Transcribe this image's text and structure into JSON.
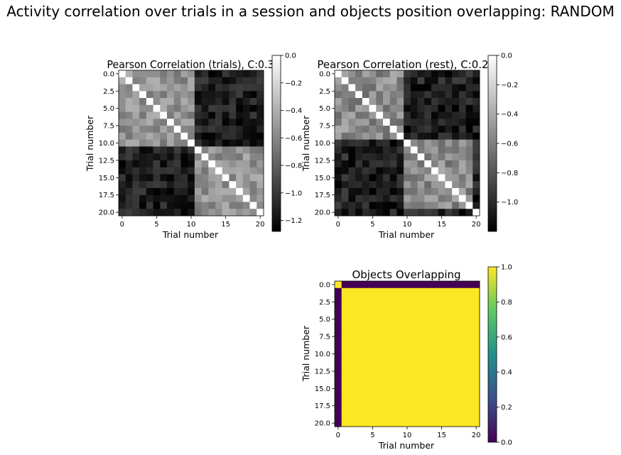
{
  "figure": {
    "suptitle": "Activity correlation over trials in a session and objects position overlapping: RANDOM"
  },
  "chart_data": [
    {
      "type": "heatmap",
      "title": "Pearson Correlation (trials), C:0.3",
      "xlabel": "Trial number",
      "ylabel": "Trial number",
      "n": 21,
      "x_ticks": [
        "0",
        "5",
        "10",
        "15",
        "20"
      ],
      "y_ticks": [
        "0.0",
        "2.5",
        "5.0",
        "7.5",
        "10.0",
        "12.5",
        "15.0",
        "17.5",
        "20.0"
      ],
      "colormap": "gray",
      "value_range": [
        -1.28,
        0
      ],
      "colorbar_ticks": [
        "0.0",
        "−0.2",
        "−0.4",
        "−0.6",
        "−0.8",
        "−1.0",
        "−1.2"
      ],
      "blocks": [
        [
          0,
          10
        ],
        [
          11,
          20
        ]
      ],
      "within_block_mean": -0.55,
      "between_block_mean": -1.12,
      "diagonal": 0
    },
    {
      "type": "heatmap",
      "title": "Pearson Correlation (rest), C:0.2",
      "xlabel": "Trial number",
      "ylabel": "Trial number",
      "n": 21,
      "x_ticks": [
        "0",
        "5",
        "10",
        "15",
        "20"
      ],
      "y_ticks": [
        "0.0",
        "2.5",
        "5.0",
        "7.5",
        "10.0",
        "12.5",
        "15.0",
        "17.5",
        "20.0"
      ],
      "colormap": "gray",
      "value_range": [
        -1.2,
        0
      ],
      "colorbar_ticks": [
        "0.0",
        "−0.2",
        "−0.4",
        "−0.6",
        "−0.8",
        "−1.0"
      ],
      "blocks": [
        [
          0,
          9
        ],
        [
          10,
          19
        ],
        [
          20,
          20
        ]
      ],
      "within_block_mean": -0.55,
      "between_block_mean": -1.05,
      "diagonal": 0
    },
    {
      "type": "heatmap",
      "title": "Objects Overlapping",
      "xlabel": "Trial number",
      "ylabel": "Trial number",
      "n": 21,
      "x_ticks": [
        "0",
        "5",
        "10",
        "15",
        "20"
      ],
      "y_ticks": [
        "0.0",
        "2.5",
        "5.0",
        "7.5",
        "10.0",
        "12.5",
        "15.0",
        "17.5",
        "20.0"
      ],
      "colormap": "viridis",
      "value_range": [
        0,
        1
      ],
      "colorbar_ticks": [
        "0.0",
        "0.2",
        "0.4",
        "0.6",
        "0.8",
        "1.0"
      ],
      "rule": "1 where row and column are both 0 or both > 0, else 0"
    }
  ]
}
